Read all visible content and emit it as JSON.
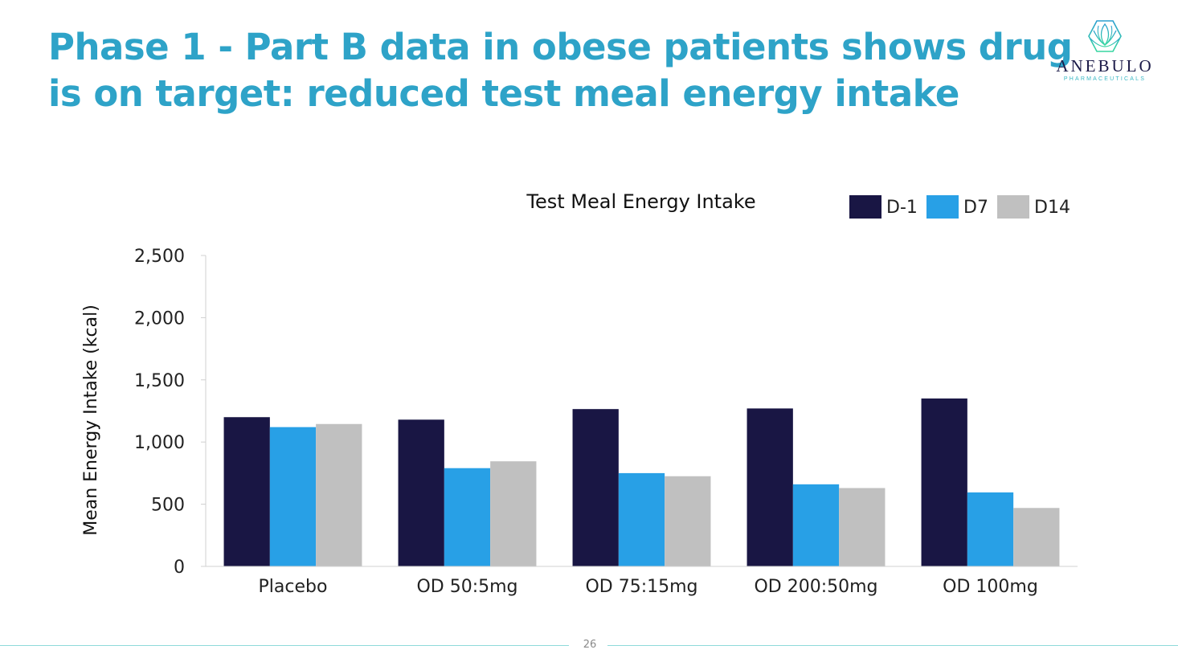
{
  "slide": {
    "title_lines": [
      "Phase 1 - Part B data in obese patients shows drug",
      "is on target: reduced test meal energy intake"
    ],
    "page_number": "26",
    "logo": {
      "name": "ANEBULO",
      "subtitle": "PHARMACEUTICALS",
      "icon": "hexagon-lotus-icon"
    }
  },
  "chart_data": {
    "type": "bar",
    "title": "Test Meal Energy Intake",
    "xlabel": "",
    "ylabel": "Mean Energy Intake (kcal)",
    "ylim": [
      0,
      2500
    ],
    "yticks": [
      0,
      500,
      1000,
      1500,
      2000,
      2500
    ],
    "ytick_labels": [
      "0",
      "500",
      "1,000",
      "1,500",
      "2,000",
      "2,500"
    ],
    "grid": false,
    "legend_position": "top-right",
    "categories": [
      "Placebo",
      "OD 50:5mg",
      "OD 75:15mg",
      "OD 200:50mg",
      "OD 100mg"
    ],
    "series": [
      {
        "name": "D-1",
        "color": "#191644",
        "values": [
          1200,
          1180,
          1265,
          1270,
          1350
        ]
      },
      {
        "name": "D7",
        "color": "#28a0e6",
        "values": [
          1120,
          790,
          750,
          660,
          595
        ]
      },
      {
        "name": "D14",
        "color": "#c0c0c0",
        "values": [
          1145,
          845,
          725,
          630,
          470
        ]
      }
    ]
  }
}
